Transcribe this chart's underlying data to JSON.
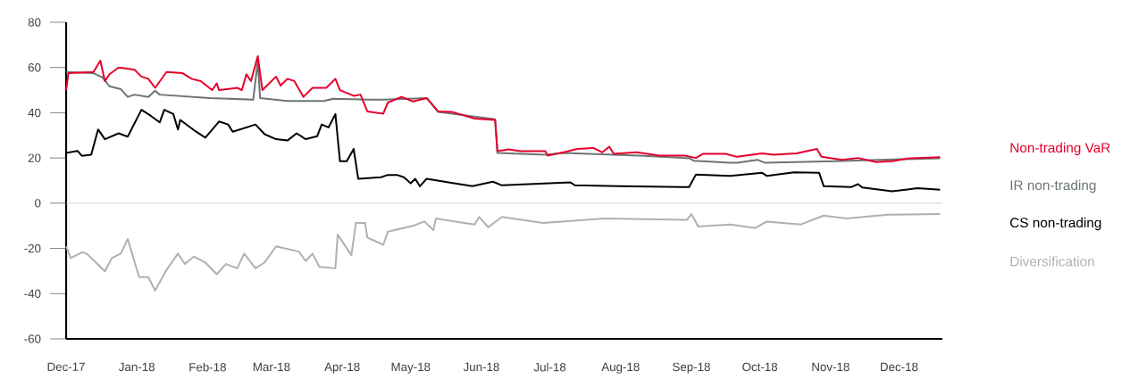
{
  "chart_data": {
    "type": "line",
    "xlim": [
      "2017-12-01",
      "2018-12-20"
    ],
    "xticks": [
      {
        "value": "2017-12-01",
        "label": "Dec-17"
      },
      {
        "value": "2018-01-01",
        "label": "Jan-18"
      },
      {
        "value": "2018-02-01",
        "label": "Feb-18"
      },
      {
        "value": "2018-03-01",
        "label": "Mar-18"
      },
      {
        "value": "2018-04-01",
        "label": "Apr-18"
      },
      {
        "value": "2018-05-01",
        "label": "May-18"
      },
      {
        "value": "2018-06-01",
        "label": "Jun-18"
      },
      {
        "value": "2018-07-01",
        "label": "Jul-18"
      },
      {
        "value": "2018-08-01",
        "label": "Aug-18"
      },
      {
        "value": "2018-09-01",
        "label": "Sep-18"
      },
      {
        "value": "2018-10-01",
        "label": "Oct-18"
      },
      {
        "value": "2018-11-01",
        "label": "Nov-18"
      },
      {
        "value": "2018-12-01",
        "label": "Dec-18"
      }
    ],
    "ylim": [
      -60,
      80
    ],
    "yticks": [
      -60,
      -40,
      -20,
      0,
      20,
      40,
      60,
      80
    ],
    "grid": false,
    "legend": "right",
    "marker": "none",
    "line_style": "solid",
    "ref_lines": [
      {
        "axis": "y",
        "value": 0,
        "color": "#c8c8c8"
      }
    ],
    "series": [
      {
        "name": "Non-trading VaR",
        "color": "#e4002b",
        "x": [
          "2017-12-01",
          "2017-12-02",
          "2017-12-13",
          "2017-12-16",
          "2017-12-18",
          "2017-12-20",
          "2017-12-24",
          "2017-12-28",
          "2017-12-31",
          "2018-01-03",
          "2018-01-06",
          "2018-01-09",
          "2018-01-14",
          "2018-01-21",
          "2018-01-25",
          "2018-01-29",
          "2018-02-03",
          "2018-02-05",
          "2018-02-06",
          "2018-02-14",
          "2018-02-16",
          "2018-02-18",
          "2018-02-20",
          "2018-02-23",
          "2018-02-25",
          "2018-03-03",
          "2018-03-05",
          "2018-03-08",
          "2018-03-11",
          "2018-03-15",
          "2018-03-19",
          "2018-03-25",
          "2018-03-29",
          "2018-03-31",
          "2018-04-06",
          "2018-04-09",
          "2018-04-12",
          "2018-04-19",
          "2018-04-21",
          "2018-04-27",
          "2018-05-02",
          "2018-05-08",
          "2018-05-13",
          "2018-05-19",
          "2018-05-29",
          "2018-06-07",
          "2018-06-08",
          "2018-06-13",
          "2018-06-18",
          "2018-06-29",
          "2018-06-30",
          "2018-07-07",
          "2018-07-13",
          "2018-07-20",
          "2018-07-24",
          "2018-07-27",
          "2018-07-29",
          "2018-08-08",
          "2018-08-18",
          "2018-08-29",
          "2018-09-03",
          "2018-09-06",
          "2018-09-16",
          "2018-09-21",
          "2018-10-02",
          "2018-10-07",
          "2018-10-17",
          "2018-10-26",
          "2018-10-28",
          "2018-11-06",
          "2018-11-13",
          "2018-11-21",
          "2018-11-28",
          "2018-12-06",
          "2018-12-19"
        ],
        "values": [
          50,
          57.5,
          58,
          63,
          54,
          57,
          60,
          59.5,
          59,
          56,
          55,
          51,
          58,
          57.5,
          55,
          54,
          50,
          53,
          50,
          51,
          50,
          57,
          54,
          65,
          50,
          56,
          52,
          55,
          54,
          47,
          51,
          51,
          55,
          50,
          47.5,
          48,
          40.6,
          39.6,
          44.5,
          47,
          45,
          46.5,
          40.6,
          40.4,
          37.4,
          36.8,
          23,
          23.8,
          23,
          23,
          21,
          22.5,
          24,
          24.4,
          22.5,
          25,
          21.8,
          22.5,
          21,
          21,
          20,
          21.8,
          21.8,
          20.5,
          22,
          21.4,
          22,
          24,
          20.5,
          19.2,
          20,
          18.2,
          18.6,
          19.9,
          20.3
        ]
      },
      {
        "name": "IR non-trading",
        "color": "#6b7474",
        "x": [
          "2017-12-01",
          "2017-12-13",
          "2017-12-17",
          "2017-12-20",
          "2017-12-25",
          "2017-12-28",
          "2017-12-31",
          "2018-01-06",
          "2018-01-09",
          "2018-01-11",
          "2018-02-02",
          "2018-02-21",
          "2018-02-23",
          "2018-02-24",
          "2018-03-08",
          "2018-03-24",
          "2018-03-28",
          "2018-04-13",
          "2018-04-19",
          "2018-05-08",
          "2018-05-13",
          "2018-06-07",
          "2018-06-08",
          "2018-06-29",
          "2018-07-07",
          "2018-08-09",
          "2018-08-31",
          "2018-09-02",
          "2018-09-18",
          "2018-09-21",
          "2018-09-30",
          "2018-10-03",
          "2018-11-03",
          "2018-12-19"
        ],
        "values": [
          58,
          57.5,
          55.6,
          51.7,
          50.4,
          47,
          48,
          47,
          49.7,
          48,
          46.5,
          45.8,
          62.7,
          46.5,
          45.2,
          45.2,
          46.2,
          45.8,
          45.8,
          46.5,
          40.4,
          37.1,
          22.2,
          21.4,
          22.2,
          21,
          19.9,
          18.8,
          17.9,
          17.9,
          19.2,
          17.9,
          18.6,
          19.9
        ]
      },
      {
        "name": "CS non-trading",
        "color": "#000000",
        "x": [
          "2017-12-01",
          "2017-12-06",
          "2017-12-08",
          "2017-12-12",
          "2017-12-15",
          "2017-12-18",
          "2017-12-24",
          "2017-12-28",
          "2018-01-03",
          "2018-01-07",
          "2018-01-11",
          "2018-01-13",
          "2018-01-17",
          "2018-01-19",
          "2018-01-20",
          "2018-01-27",
          "2018-01-31",
          "2018-02-06",
          "2018-02-10",
          "2018-02-12",
          "2018-02-22",
          "2018-02-26",
          "2018-03-03",
          "2018-03-08",
          "2018-03-12",
          "2018-03-16",
          "2018-03-21",
          "2018-03-23",
          "2018-03-26",
          "2018-03-29",
          "2018-03-31",
          "2018-04-03",
          "2018-04-06",
          "2018-04-08",
          "2018-04-11",
          "2018-04-18",
          "2018-04-21",
          "2018-04-25",
          "2018-04-28",
          "2018-05-01",
          "2018-05-03",
          "2018-05-05",
          "2018-05-08",
          "2018-05-20",
          "2018-05-28",
          "2018-06-06",
          "2018-06-10",
          "2018-07-10",
          "2018-07-12",
          "2018-07-31",
          "2018-08-31",
          "2018-09-03",
          "2018-09-18",
          "2018-10-02",
          "2018-10-04",
          "2018-10-16",
          "2018-10-27",
          "2018-10-29",
          "2018-11-10",
          "2018-11-13",
          "2018-11-15",
          "2018-11-28",
          "2018-12-09",
          "2018-12-19"
        ],
        "values": [
          22.2,
          23.1,
          20.9,
          21.4,
          32.6,
          28.3,
          30.9,
          29.4,
          41.3,
          38.7,
          35.7,
          41.3,
          39.4,
          32.6,
          36.8,
          31.6,
          29,
          36.1,
          34.8,
          31.6,
          34.8,
          30.5,
          28.3,
          27.7,
          30.9,
          28.3,
          29.6,
          34.8,
          33.5,
          39.4,
          18.6,
          18.6,
          24,
          10.8,
          11,
          11.5,
          12.5,
          12.5,
          11.5,
          8.8,
          10.8,
          7.5,
          10.8,
          8.8,
          7.5,
          9.5,
          7.9,
          9.2,
          7.9,
          7.5,
          7.1,
          12.7,
          12.1,
          13.4,
          12.1,
          13.6,
          13.4,
          7.5,
          7.1,
          8.4,
          6.9,
          5.3,
          6.6,
          6
        ]
      },
      {
        "name": "Diversification",
        "color": "#b0b0b0",
        "x": [
          "2017-12-01",
          "2017-12-03",
          "2017-12-08",
          "2017-12-10",
          "2017-12-14",
          "2017-12-18",
          "2017-12-21",
          "2017-12-25",
          "2017-12-28",
          "2018-01-02",
          "2018-01-06",
          "2018-01-09",
          "2018-01-14",
          "2018-01-19",
          "2018-01-22",
          "2018-01-26",
          "2018-01-31",
          "2018-02-05",
          "2018-02-09",
          "2018-02-14",
          "2018-02-17",
          "2018-02-22",
          "2018-02-26",
          "2018-03-03",
          "2018-03-13",
          "2018-03-16",
          "2018-03-19",
          "2018-03-22",
          "2018-03-29",
          "2018-03-30",
          "2018-04-05",
          "2018-04-07",
          "2018-04-11",
          "2018-04-12",
          "2018-04-19",
          "2018-04-21",
          "2018-05-02",
          "2018-05-07",
          "2018-05-11",
          "2018-05-12",
          "2018-05-29",
          "2018-05-31",
          "2018-06-04",
          "2018-06-10",
          "2018-06-28",
          "2018-07-25",
          "2018-08-30",
          "2018-09-01",
          "2018-09-04",
          "2018-09-18",
          "2018-09-29",
          "2018-10-04",
          "2018-10-19",
          "2018-10-29",
          "2018-11-08",
          "2018-11-26",
          "2018-12-19"
        ],
        "values": [
          -19.1,
          -24.3,
          -21.7,
          -22.3,
          -26.2,
          -30.1,
          -24.3,
          -22.3,
          -15.8,
          -32.7,
          -32.7,
          -38.6,
          -29.5,
          -22.3,
          -26.9,
          -23.6,
          -26.2,
          -31.4,
          -26.9,
          -28.8,
          -22.3,
          -28.8,
          -26.2,
          -19.1,
          -21.4,
          -25.6,
          -22.3,
          -28.2,
          -28.8,
          -13.9,
          -23,
          -8.7,
          -8.7,
          -15.2,
          -18.4,
          -12.6,
          -10,
          -8.1,
          -11.9,
          -6.8,
          -9.4,
          -6.1,
          -10.6,
          -6.1,
          -8.7,
          -6.8,
          -7.4,
          -4.8,
          -10.3,
          -9.4,
          -11,
          -8.1,
          -9.4,
          -5.5,
          -6.8,
          -5.1,
          -4.8
        ]
      }
    ]
  }
}
